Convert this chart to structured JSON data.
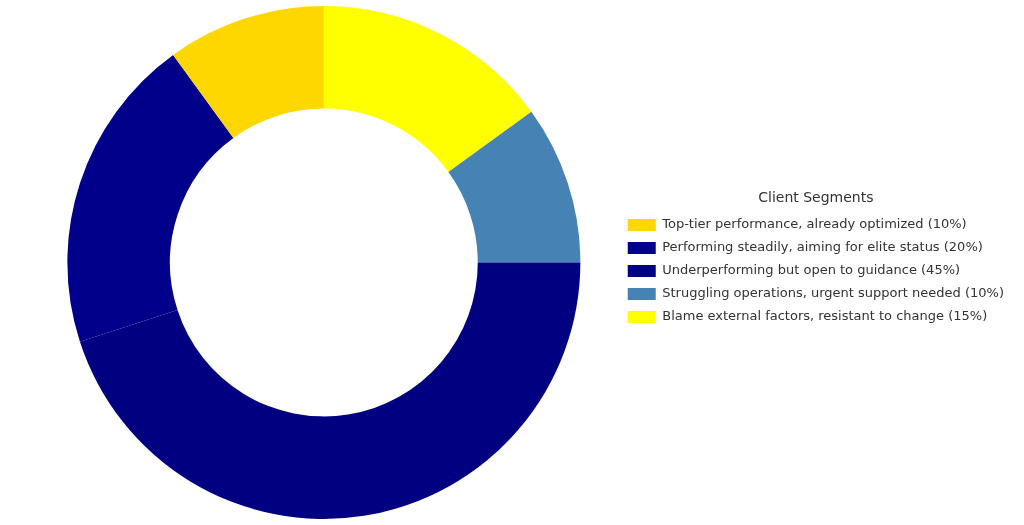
{
  "chart_data": {
    "type": "donut",
    "legend_title": "Client Segments",
    "legend": "right",
    "categories": [
      "Top-tier performance, already optimized (10%)",
      "Performing steadily, aiming for elite status (20%)",
      "Underperforming but open to guidance (45%)",
      "Struggling operations, urgent support needed (10%)",
      "Blame external factors, resistant to change (15%)"
    ],
    "values": [
      10,
      20,
      45,
      10,
      15
    ],
    "colors": [
      "#ffd700",
      "#00008b",
      "#000080",
      "#4682b4",
      "#ffff00"
    ]
  }
}
